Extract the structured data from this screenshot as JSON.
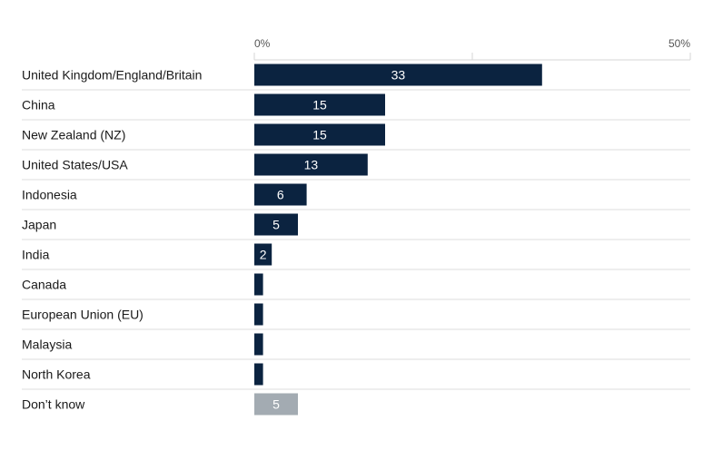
{
  "colors": {
    "bar": "#0b2340",
    "bar_muted": "#a3abb2",
    "gridline": "#d6d6d6",
    "separator": "#dcdcdc",
    "text": "#1a1a1a",
    "axis_text": "#555555",
    "label_on_bar": "#ffffff"
  },
  "chart_data": {
    "type": "bar",
    "orientation": "horizontal",
    "title": "",
    "xlabel": "",
    "ylabel": "",
    "xlim": [
      0,
      50
    ],
    "grid": true,
    "legend": "none",
    "tick_labels": [
      "0%",
      "50%"
    ],
    "categories": [
      "United Kingdom/England/Britain",
      "China",
      "New Zealand (NZ)",
      "United States/USA",
      "Indonesia",
      "Japan",
      "India",
      "Canada",
      "European Union (EU)",
      "Malaysia",
      "North Korea",
      "Don’t know"
    ],
    "values": [
      33,
      15,
      15,
      13,
      6,
      5,
      2,
      1,
      1,
      1,
      1,
      5
    ],
    "data_labels": [
      "33",
      "15",
      "15",
      "13",
      "6",
      "5",
      "2",
      "",
      "",
      "",
      "",
      "5"
    ],
    "muted": [
      false,
      false,
      false,
      false,
      false,
      false,
      false,
      false,
      false,
      false,
      false,
      true
    ]
  }
}
